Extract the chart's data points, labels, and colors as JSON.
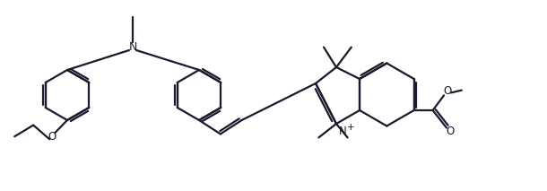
{
  "bg_color": "#ffffff",
  "line_color": "#1a1a2e",
  "lw": 1.6,
  "figsize": [
    6.1,
    2.13
  ],
  "dpi": 100,
  "xlim": [
    0,
    610
  ],
  "ylim": [
    0,
    213
  ]
}
